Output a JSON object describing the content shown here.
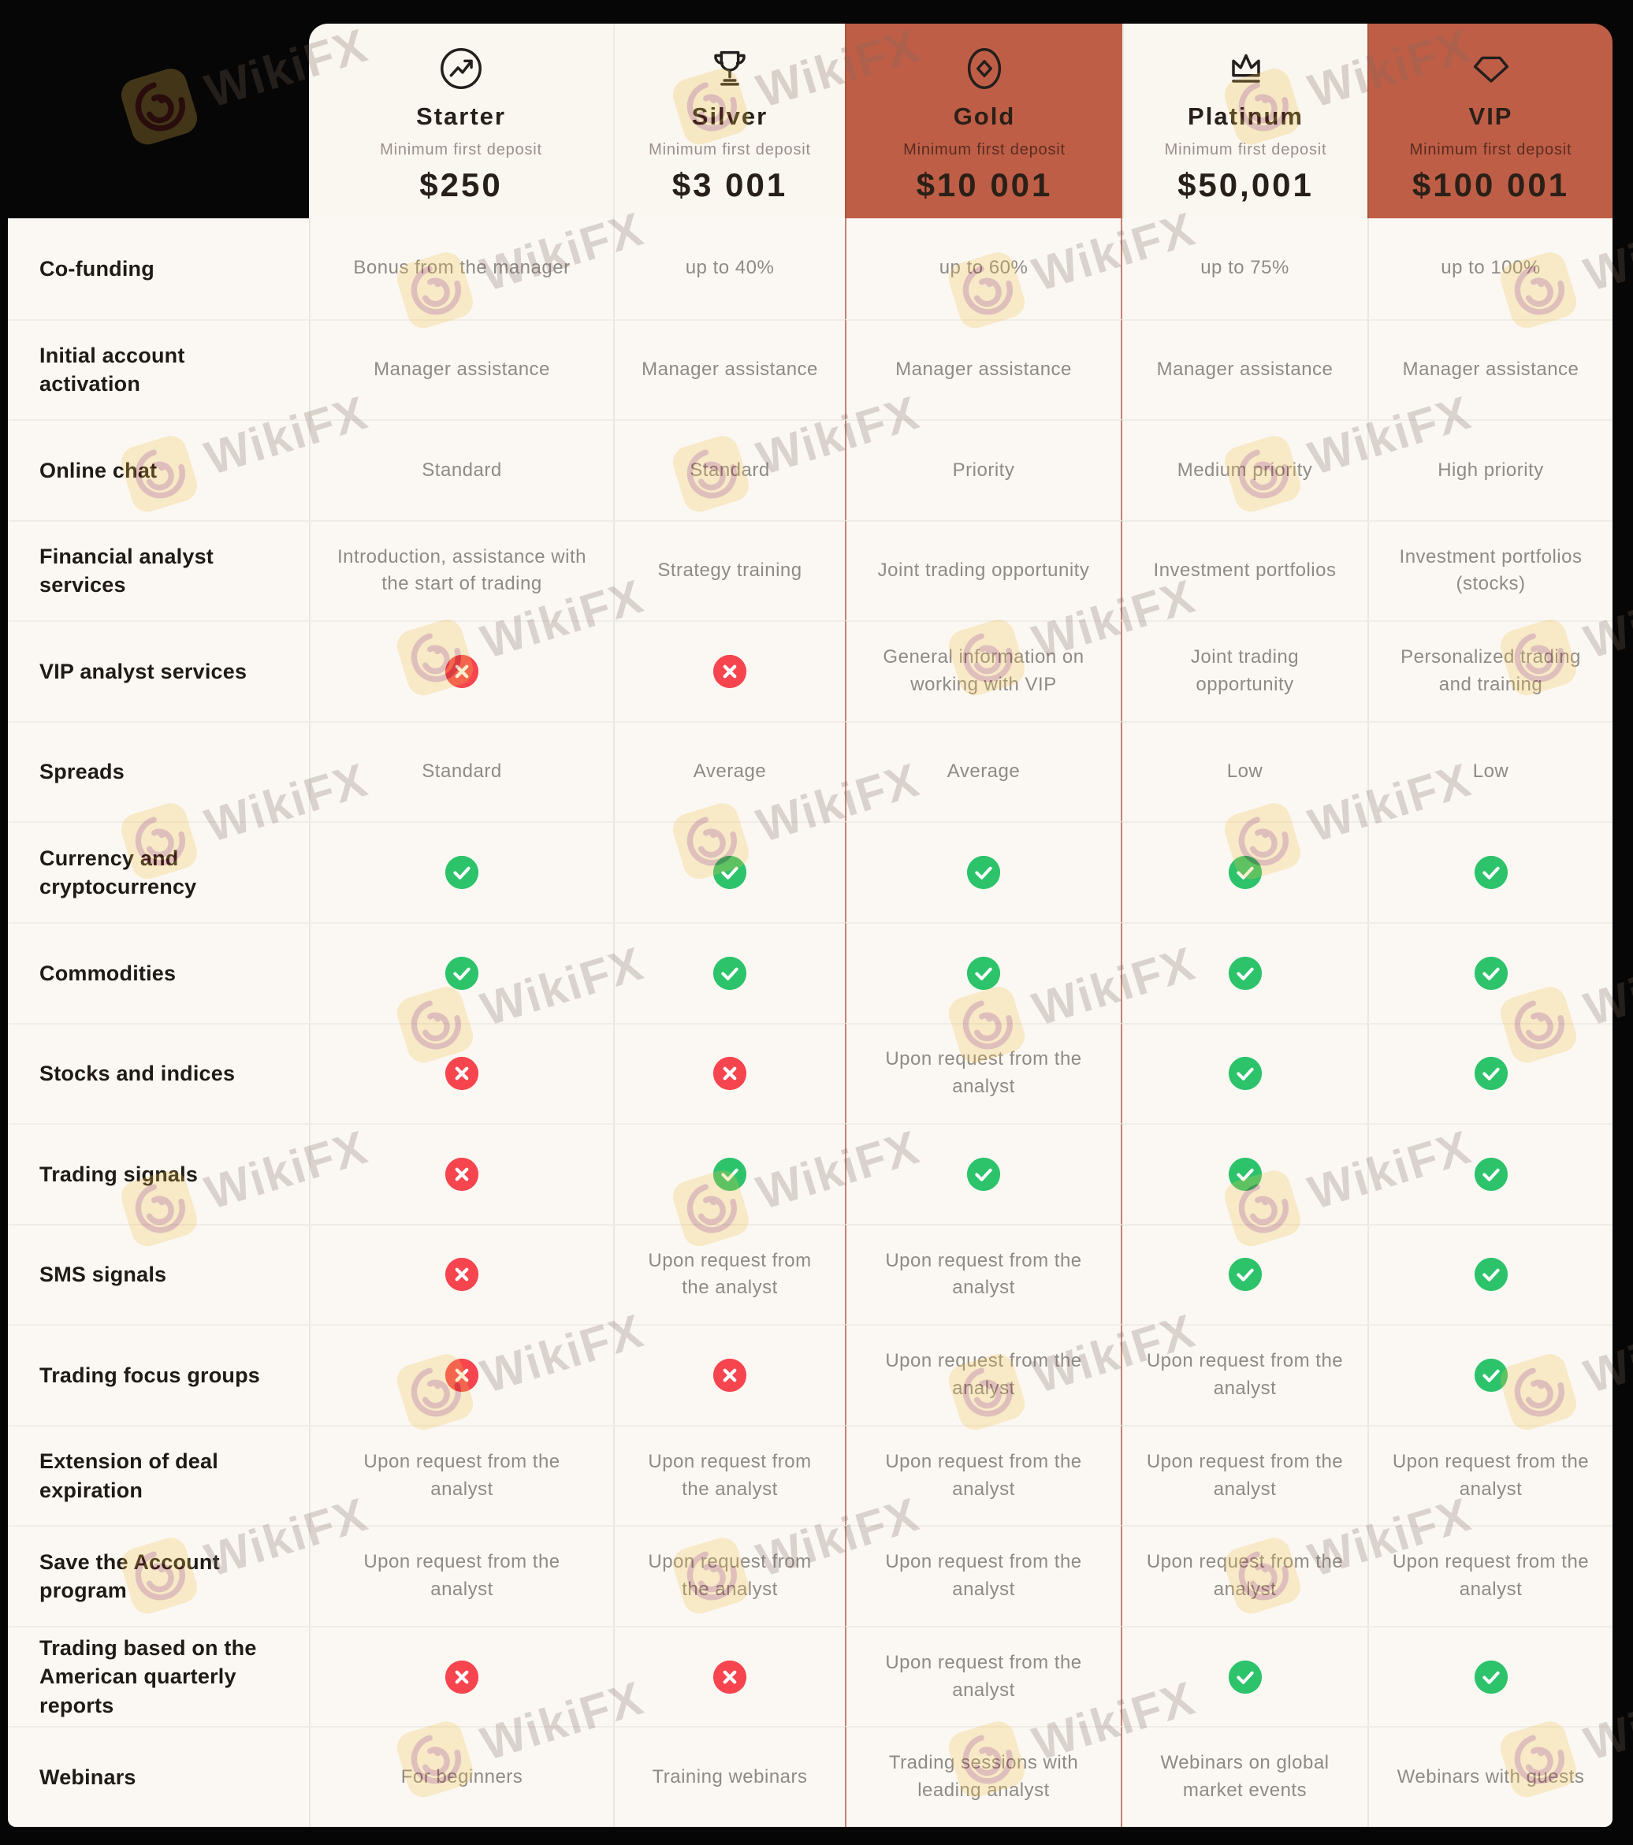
{
  "watermark": {
    "brand": "WikiFX"
  },
  "colors": {
    "accent_terracotta": "#bf5e47",
    "check_green": "#2cc36b",
    "cross_red": "#f6454e",
    "card_light": "#faf6f0",
    "text_dark": "#1f1a15",
    "text_muted": "#8f8a84"
  },
  "table": {
    "deposit_label": "Minimum first deposit",
    "tiers": [
      {
        "name": "Starter",
        "icon": "trend-up-circle-icon",
        "deposit": "$250",
        "highlight": false
      },
      {
        "name": "Silver",
        "icon": "trophy-icon",
        "deposit": "$3 001",
        "highlight": false
      },
      {
        "name": "Gold",
        "icon": "coin-diamond-icon",
        "deposit": "$10 001",
        "highlight": true
      },
      {
        "name": "Platinum",
        "icon": "crown-icon",
        "deposit": "$50,001",
        "highlight": false
      },
      {
        "name": "VIP",
        "icon": "diamond-icon",
        "deposit": "$100 001",
        "highlight": true
      }
    ],
    "rows": [
      {
        "feature": "Co-funding",
        "cells": [
          {
            "type": "text",
            "value": "Bonus from the manager"
          },
          {
            "type": "text",
            "value": "up to 40%"
          },
          {
            "type": "text",
            "value": "up to 60%"
          },
          {
            "type": "text",
            "value": "up to 75%"
          },
          {
            "type": "text",
            "value": "up to 100%"
          }
        ]
      },
      {
        "feature": "Initial account activation",
        "cells": [
          {
            "type": "text",
            "value": "Manager assistance"
          },
          {
            "type": "text",
            "value": "Manager assistance"
          },
          {
            "type": "text",
            "value": "Manager assistance"
          },
          {
            "type": "text",
            "value": "Manager assistance"
          },
          {
            "type": "text",
            "value": "Manager assistance"
          }
        ]
      },
      {
        "feature": "Online chat",
        "cells": [
          {
            "type": "text",
            "value": "Standard"
          },
          {
            "type": "text",
            "value": "Standard"
          },
          {
            "type": "text",
            "value": "Priority"
          },
          {
            "type": "text",
            "value": "Medium priority"
          },
          {
            "type": "text",
            "value": "High priority"
          }
        ]
      },
      {
        "feature": "Financial analyst services",
        "cells": [
          {
            "type": "text",
            "value": "Introduction, assistance with the start of trading"
          },
          {
            "type": "text",
            "value": "Strategy training"
          },
          {
            "type": "text",
            "value": "Joint trading opportunity"
          },
          {
            "type": "text",
            "value": "Investment portfolios"
          },
          {
            "type": "text",
            "value": "Investment portfolios (stocks)"
          }
        ]
      },
      {
        "feature": "VIP analyst services",
        "cells": [
          {
            "type": "no"
          },
          {
            "type": "no"
          },
          {
            "type": "text",
            "value": "General information on working with VIP"
          },
          {
            "type": "text",
            "value": "Joint trading opportunity"
          },
          {
            "type": "text",
            "value": "Personalized trading and training"
          }
        ]
      },
      {
        "feature": "Spreads",
        "cells": [
          {
            "type": "text",
            "value": "Standard"
          },
          {
            "type": "text",
            "value": "Average"
          },
          {
            "type": "text",
            "value": "Average"
          },
          {
            "type": "text",
            "value": "Low"
          },
          {
            "type": "text",
            "value": "Low"
          }
        ]
      },
      {
        "feature": "Currency and cryptocurrency",
        "cells": [
          {
            "type": "yes"
          },
          {
            "type": "yes"
          },
          {
            "type": "yes"
          },
          {
            "type": "yes"
          },
          {
            "type": "yes"
          }
        ]
      },
      {
        "feature": "Commodities",
        "cells": [
          {
            "type": "yes"
          },
          {
            "type": "yes"
          },
          {
            "type": "yes"
          },
          {
            "type": "yes"
          },
          {
            "type": "yes"
          }
        ]
      },
      {
        "feature": "Stocks and indices",
        "cells": [
          {
            "type": "no"
          },
          {
            "type": "no"
          },
          {
            "type": "text",
            "value": "Upon request from the analyst"
          },
          {
            "type": "yes"
          },
          {
            "type": "yes"
          }
        ]
      },
      {
        "feature": "Trading signals",
        "cells": [
          {
            "type": "no"
          },
          {
            "type": "yes"
          },
          {
            "type": "yes"
          },
          {
            "type": "yes"
          },
          {
            "type": "yes"
          }
        ]
      },
      {
        "feature": "SMS signals",
        "cells": [
          {
            "type": "no"
          },
          {
            "type": "text",
            "value": "Upon request from the analyst"
          },
          {
            "type": "text",
            "value": "Upon request from the analyst"
          },
          {
            "type": "yes"
          },
          {
            "type": "yes"
          }
        ]
      },
      {
        "feature": "Trading focus groups",
        "cells": [
          {
            "type": "no"
          },
          {
            "type": "no"
          },
          {
            "type": "text",
            "value": "Upon request from the analyst"
          },
          {
            "type": "text",
            "value": "Upon request from the analyst"
          },
          {
            "type": "yes"
          }
        ]
      },
      {
        "feature": "Extension of deal expiration",
        "cells": [
          {
            "type": "text",
            "value": "Upon request from the analyst"
          },
          {
            "type": "text",
            "value": "Upon request from the analyst"
          },
          {
            "type": "text",
            "value": "Upon request from the analyst"
          },
          {
            "type": "text",
            "value": "Upon request from the analyst"
          },
          {
            "type": "text",
            "value": "Upon request from the analyst"
          }
        ]
      },
      {
        "feature": "Save the Account program",
        "cells": [
          {
            "type": "text",
            "value": "Upon request from the analyst"
          },
          {
            "type": "text",
            "value": "Upon request from the analyst"
          },
          {
            "type": "text",
            "value": "Upon request from the analyst"
          },
          {
            "type": "text",
            "value": "Upon request from the analyst"
          },
          {
            "type": "text",
            "value": "Upon request from the analyst"
          }
        ]
      },
      {
        "feature": "Trading based on the American quarterly reports",
        "cells": [
          {
            "type": "no"
          },
          {
            "type": "no"
          },
          {
            "type": "text",
            "value": "Upon request from the analyst"
          },
          {
            "type": "yes"
          },
          {
            "type": "yes"
          }
        ]
      },
      {
        "feature": "Webinars",
        "cells": [
          {
            "type": "text",
            "value": "For beginners"
          },
          {
            "type": "text",
            "value": "Training webinars"
          },
          {
            "type": "text",
            "value": "Trading sessions with leading analyst"
          },
          {
            "type": "text",
            "value": "Webinars on global market events"
          },
          {
            "type": "text",
            "value": "Webinars with guests"
          }
        ]
      }
    ]
  }
}
